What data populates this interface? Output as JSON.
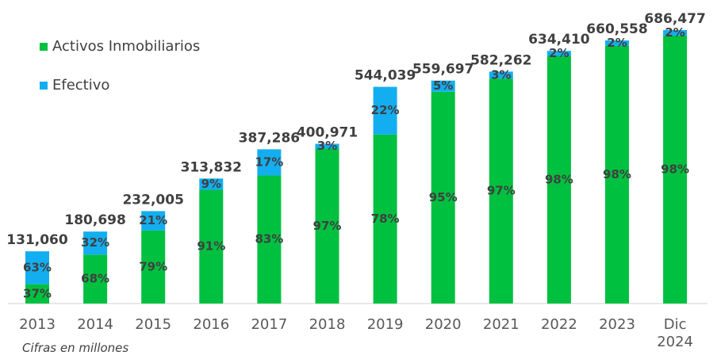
{
  "chart_data": {
    "type": "stacked-share-bar",
    "categories": [
      "2013",
      "2014",
      "2015",
      "2016",
      "2017",
      "2018",
      "2019",
      "2020",
      "2021",
      "2022",
      "2023",
      "Dic 2024"
    ],
    "totals": {
      "values": [
        131060,
        180698,
        232005,
        313832,
        387286,
        400971,
        544039,
        559697,
        582262,
        634410,
        660558,
        686477
      ],
      "value_labels": [
        "131,060",
        "180,698",
        "232,005",
        "313,832",
        "387,286",
        "400,971",
        "544,039",
        "559,697",
        "582,262",
        "634,410",
        "660,558",
        "686,477"
      ]
    },
    "series": [
      {
        "name": "Activos Inmobiliarios",
        "color": "#00c040",
        "values": [
          37,
          68,
          79,
          91,
          83,
          97,
          78,
          95,
          97,
          98,
          98,
          98
        ],
        "value_labels": [
          "37%",
          "68%",
          "79%",
          "91%",
          "83%",
          "97%",
          "78%",
          "95%",
          "97%",
          "98%",
          "98%",
          "98%"
        ]
      },
      {
        "name": "Efectivo",
        "color": "#13aef0",
        "values": [
          63,
          32,
          21,
          9,
          17,
          3,
          22,
          5,
          3,
          2,
          2,
          2
        ],
        "value_labels": [
          "63%",
          "32%",
          "21%",
          "9%",
          "17%",
          "3%",
          "22%",
          "5%",
          "3%",
          "2%",
          "2%",
          "2%"
        ]
      }
    ],
    "note": "Cifras en millones"
  }
}
